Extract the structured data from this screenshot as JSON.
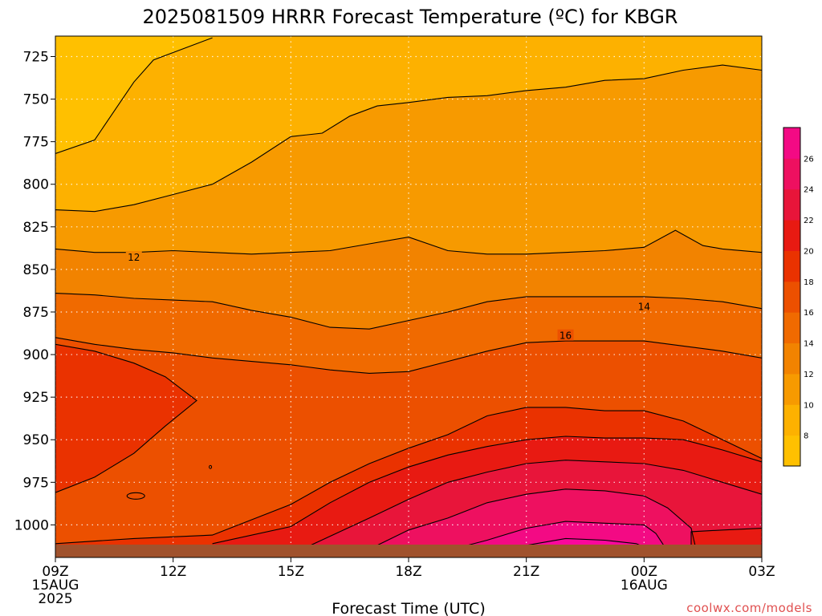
{
  "title": "2025081509 HRRR Forecast Temperature (ºC) for KBGR",
  "xlabel": "Forecast Time (UTC)",
  "credit": "coolwx.com/models",
  "chart_data": {
    "type": "heatmap",
    "title": "2025081509 HRRR Forecast Temperature (ºC) for KBGR",
    "xlabel": "Forecast Time (UTC)",
    "ylabel": "",
    "x_range_hours": [
      9,
      27
    ],
    "y_range_hPa": [
      713,
      1013
    ],
    "x_ticks": [
      {
        "hour": 9,
        "lines": [
          "09Z",
          "15AUG",
          "2025"
        ]
      },
      {
        "hour": 12,
        "lines": [
          "12Z"
        ]
      },
      {
        "hour": 15,
        "lines": [
          "15Z"
        ]
      },
      {
        "hour": 18,
        "lines": [
          "18Z"
        ]
      },
      {
        "hour": 21,
        "lines": [
          "21Z"
        ]
      },
      {
        "hour": 24,
        "lines": [
          "00Z",
          "16AUG"
        ]
      },
      {
        "hour": 27,
        "lines": [
          "03Z"
        ]
      }
    ],
    "y_ticks": [
      725,
      750,
      775,
      800,
      825,
      850,
      875,
      900,
      925,
      950,
      975,
      1000
    ],
    "grid": true,
    "colorbar_ticks": [
      8,
      10,
      12,
      14,
      16,
      18,
      20,
      22,
      24,
      26
    ],
    "contour_labels": [
      {
        "value": "12",
        "hour": 11.0,
        "pressure": 843
      },
      {
        "value": "14",
        "hour": 24.0,
        "pressure": 872
      },
      {
        "value": "16",
        "hour": 22.0,
        "pressure": 889
      }
    ],
    "contours": [
      {
        "level": 8,
        "points": [
          [
            9,
            782
          ],
          [
            10,
            774
          ],
          [
            10.5,
            757
          ],
          [
            11,
            740
          ],
          [
            11.5,
            727
          ],
          [
            13,
            714
          ]
        ]
      },
      {
        "level": 10,
        "points": [
          [
            9,
            815
          ],
          [
            10,
            816
          ],
          [
            11,
            812
          ],
          [
            12,
            806
          ],
          [
            13,
            800
          ],
          [
            14,
            787
          ],
          [
            15,
            772
          ],
          [
            15.8,
            770
          ],
          [
            16.5,
            760
          ],
          [
            17.2,
            754
          ],
          [
            18,
            752
          ],
          [
            19,
            749
          ],
          [
            20,
            748
          ],
          [
            21,
            745
          ],
          [
            22,
            743
          ],
          [
            23,
            739
          ],
          [
            24,
            738
          ],
          [
            25,
            733
          ],
          [
            26,
            730
          ],
          [
            27,
            733
          ]
        ]
      },
      {
        "level": 12,
        "points": [
          [
            9,
            838
          ],
          [
            10,
            840
          ],
          [
            11,
            840
          ],
          [
            12,
            839
          ],
          [
            13,
            840
          ],
          [
            14,
            841
          ],
          [
            15,
            840
          ],
          [
            16,
            839
          ],
          [
            17,
            835
          ],
          [
            18,
            831
          ],
          [
            19,
            839
          ],
          [
            20,
            841
          ],
          [
            21,
            841
          ],
          [
            22,
            840
          ],
          [
            23,
            839
          ],
          [
            24,
            837
          ],
          [
            24.8,
            827
          ],
          [
            25.5,
            836
          ],
          [
            26,
            838
          ],
          [
            27,
            840
          ]
        ]
      },
      {
        "level": 14,
        "points": [
          [
            9,
            864
          ],
          [
            10,
            865
          ],
          [
            11,
            867
          ],
          [
            12,
            868
          ],
          [
            13,
            869
          ],
          [
            14,
            874
          ],
          [
            15,
            878
          ],
          [
            16,
            884
          ],
          [
            17,
            885
          ],
          [
            18,
            880
          ],
          [
            19,
            875
          ],
          [
            20,
            869
          ],
          [
            21,
            866
          ],
          [
            22,
            866
          ],
          [
            23,
            866
          ],
          [
            24,
            866
          ],
          [
            25,
            867
          ],
          [
            26,
            869
          ],
          [
            27,
            873
          ]
        ]
      },
      {
        "level": 16,
        "points": [
          [
            9,
            890
          ],
          [
            10,
            894
          ],
          [
            11,
            897
          ],
          [
            12,
            899
          ],
          [
            13,
            902
          ],
          [
            14,
            904
          ],
          [
            15,
            906
          ],
          [
            16,
            909
          ],
          [
            17,
            911
          ],
          [
            18,
            910
          ],
          [
            19,
            904
          ],
          [
            20,
            898
          ],
          [
            21,
            893
          ],
          [
            22,
            892
          ],
          [
            23,
            892
          ],
          [
            24,
            892
          ],
          [
            25,
            895
          ],
          [
            26,
            898
          ],
          [
            27,
            902
          ]
        ]
      },
      {
        "level": 18,
        "points": [
          [
            9,
            981
          ],
          [
            10,
            972
          ],
          [
            11,
            958
          ],
          [
            11.8,
            942
          ],
          [
            12.6,
            927
          ],
          [
            11.8,
            913
          ],
          [
            11,
            905
          ],
          [
            10,
            898
          ],
          [
            9,
            894
          ]
        ]
      },
      {
        "level": 18.1,
        "points": [
          [
            9,
            1011
          ],
          [
            11,
            1008
          ],
          [
            13,
            1006
          ],
          [
            15,
            988
          ],
          [
            16,
            975
          ],
          [
            17,
            964
          ],
          [
            18,
            955
          ],
          [
            19,
            947
          ],
          [
            20,
            936
          ],
          [
            21,
            931
          ],
          [
            22,
            931
          ],
          [
            23,
            933
          ],
          [
            24,
            933
          ],
          [
            25,
            939
          ],
          [
            26,
            950
          ],
          [
            27,
            961
          ]
        ]
      },
      {
        "level": 20,
        "points": [
          [
            13,
            1011
          ],
          [
            15,
            1001
          ],
          [
            16,
            987
          ],
          [
            17,
            975
          ],
          [
            18,
            966
          ],
          [
            19,
            959
          ],
          [
            20,
            954
          ],
          [
            21,
            950
          ],
          [
            22,
            948
          ],
          [
            23,
            949
          ],
          [
            24,
            949
          ],
          [
            25,
            950
          ],
          [
            26,
            956
          ],
          [
            27,
            963
          ]
        ]
      },
      {
        "level": 22,
        "points": [
          [
            15.5,
            1012
          ],
          [
            17,
            996
          ],
          [
            18,
            985
          ],
          [
            19,
            975
          ],
          [
            20,
            969
          ],
          [
            21,
            964
          ],
          [
            22,
            962
          ],
          [
            23,
            963
          ],
          [
            24,
            964
          ],
          [
            25,
            968
          ],
          [
            26,
            975
          ],
          [
            27,
            982
          ]
        ]
      },
      {
        "level": 24,
        "points": [
          [
            17.2,
            1012
          ],
          [
            18,
            1003
          ],
          [
            19,
            996
          ],
          [
            20,
            987
          ],
          [
            21,
            982
          ],
          [
            22,
            979
          ],
          [
            23,
            980
          ],
          [
            24,
            983
          ],
          [
            24.6,
            990
          ],
          [
            25.2,
            1002
          ],
          [
            25.3,
            1012
          ]
        ]
      },
      {
        "level": 26,
        "points": [
          [
            19.5,
            1012
          ],
          [
            20,
            1009
          ],
          [
            21,
            1002
          ],
          [
            22,
            998
          ],
          [
            23,
            999
          ],
          [
            24,
            1000
          ],
          [
            24.3,
            1005
          ],
          [
            24.5,
            1012
          ]
        ]
      },
      {
        "level": 28,
        "points": [
          [
            21,
            1012
          ],
          [
            22,
            1008
          ],
          [
            23,
            1009
          ],
          [
            23.8,
            1011
          ],
          [
            24,
            1013
          ]
        ]
      },
      {
        "level": 20.1,
        "points": [
          [
            25.2,
            1013
          ],
          [
            25.2,
            1004
          ],
          [
            26,
            1003
          ],
          [
            27,
            1002
          ]
        ]
      }
    ],
    "colors": {
      "bg_top": "#ffc000",
      "level_8": "#fdb100",
      "level_10": "#f79a00",
      "level_12": "#f28300",
      "level_14": "#f06a00",
      "level_16": "#ec5000",
      "level_18": "#ea3200",
      "level_20": "#e81a12",
      "level_22": "#e8153a",
      "level_24": "#ee1060",
      "level_26": "#f30a84",
      "level_28": "#fa089c",
      "ground": "#a0522d",
      "credit": "#e05050"
    }
  }
}
